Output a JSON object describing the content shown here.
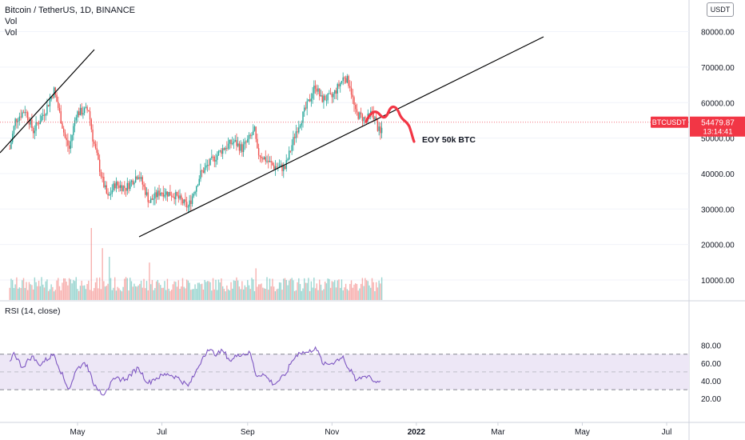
{
  "header": {
    "symbol_line": "Bitcoin / TetherUS, 1D, BINANCE",
    "vol1": "Vol",
    "vol2": "Vol",
    "currency": "USDT"
  },
  "rsi_label": "RSI (14, close)",
  "annotation": "EOY 50k BTC",
  "last_price": {
    "symbol": "BTCUSDT",
    "price": "54479.87",
    "countdown": "13:14:41",
    "value": 54479.87
  },
  "colors": {
    "up": "#26a69a",
    "down": "#ef5350",
    "rsi_line": "#7e57c2",
    "rsi_band": "#ede7f6",
    "drawing": "#000000",
    "annotation_line": "#f23645",
    "axis_text": "#131722",
    "grid": "#f0f3fa"
  },
  "chart_data": [
    {
      "type": "candlestick",
      "title": "Bitcoin / TetherUS, 1D, BINANCE",
      "y_ticks": [
        "10000.00",
        "20000.00",
        "30000.00",
        "40000.00",
        "50000.00",
        "60000.00",
        "70000.00",
        "80000.00"
      ],
      "ylim": [
        0,
        84000
      ],
      "x_ticks": [
        "May",
        "Jul",
        "Sep",
        "Nov",
        "2022",
        "Mar",
        "May",
        "Jul"
      ],
      "price_path": [
        [
          "2021-03-13",
          47000
        ],
        [
          "2021-03-17",
          55000
        ],
        [
          "2021-03-24",
          58000
        ],
        [
          "2021-03-30",
          52000
        ],
        [
          "2021-04-08",
          58000
        ],
        [
          "2021-04-14",
          63500
        ],
        [
          "2021-04-18",
          57000
        ],
        [
          "2021-04-22",
          50000
        ],
        [
          "2021-04-25",
          47000
        ],
        [
          "2021-04-30",
          57000
        ],
        [
          "2021-05-09",
          58000
        ],
        [
          "2021-05-12",
          50000
        ],
        [
          "2021-05-19",
          38000
        ],
        [
          "2021-05-23",
          33000
        ],
        [
          "2021-05-28",
          37000
        ],
        [
          "2021-06-05",
          36000
        ],
        [
          "2021-06-14",
          40000
        ],
        [
          "2021-06-22",
          32000
        ],
        [
          "2021-06-30",
          35000
        ],
        [
          "2021-07-10",
          34000
        ],
        [
          "2021-07-20",
          30500
        ],
        [
          "2021-07-29",
          40000
        ],
        [
          "2021-08-07",
          44000
        ],
        [
          "2021-08-14",
          47000
        ],
        [
          "2021-08-22",
          49000
        ],
        [
          "2021-08-28",
          47000
        ],
        [
          "2021-09-06",
          52000
        ],
        [
          "2021-09-08",
          46000
        ],
        [
          "2021-09-20",
          42000
        ],
        [
          "2021-09-28",
          41500
        ],
        [
          "2021-10-06",
          52000
        ],
        [
          "2021-10-15",
          60000
        ],
        [
          "2021-10-20",
          65000
        ],
        [
          "2021-10-24",
          61000
        ],
        [
          "2021-11-01",
          61500
        ],
        [
          "2021-11-10",
          67500
        ],
        [
          "2021-11-14",
          65000
        ],
        [
          "2021-11-18",
          57000
        ],
        [
          "2021-11-26",
          55000
        ],
        [
          "2021-11-30",
          57500
        ],
        [
          "2021-12-04",
          53000
        ],
        [
          "2021-12-06",
          51000
        ],
        [
          "2021-12-08",
          54500
        ]
      ],
      "volume_spikes": [
        [
          "2021-05-11",
          25000
        ],
        [
          "2021-05-19",
          18000
        ],
        [
          "2021-05-24",
          15000
        ],
        [
          "2021-06-22",
          13000
        ],
        [
          "2021-09-07",
          11000
        ]
      ],
      "last_price": 54479.87
    },
    {
      "type": "line",
      "title": "RSI (14, close)",
      "y_ticks": [
        "20.00",
        "40.00",
        "60.00",
        "80.00"
      ],
      "ylim": [
        20,
        82
      ],
      "bands": [
        30,
        50,
        70
      ],
      "points": [
        [
          "2021-03-13",
          62
        ],
        [
          "2021-03-16",
          72
        ],
        [
          "2021-03-22",
          55
        ],
        [
          "2021-03-29",
          68
        ],
        [
          "2021-04-03",
          58
        ],
        [
          "2021-04-14",
          70
        ],
        [
          "2021-04-23",
          35
        ],
        [
          "2021-04-25",
          31
        ],
        [
          "2021-04-30",
          52
        ],
        [
          "2021-05-05",
          60
        ],
        [
          "2021-05-08",
          58
        ],
        [
          "2021-05-12",
          38
        ],
        [
          "2021-05-17",
          30
        ],
        [
          "2021-05-19",
          24
        ],
        [
          "2021-05-22",
          30
        ],
        [
          "2021-05-28",
          42
        ],
        [
          "2021-06-05",
          42
        ],
        [
          "2021-06-14",
          55
        ],
        [
          "2021-06-21",
          37
        ],
        [
          "2021-06-25",
          42
        ],
        [
          "2021-07-05",
          48
        ],
        [
          "2021-07-12",
          44
        ],
        [
          "2021-07-20",
          34
        ],
        [
          "2021-07-25",
          48
        ],
        [
          "2021-07-31",
          68
        ],
        [
          "2021-08-03",
          75
        ],
        [
          "2021-08-10",
          70
        ],
        [
          "2021-08-14",
          74
        ],
        [
          "2021-08-20",
          62
        ],
        [
          "2021-08-25",
          70
        ],
        [
          "2021-09-03",
          71
        ],
        [
          "2021-09-07",
          46
        ],
        [
          "2021-09-12",
          48
        ],
        [
          "2021-09-20",
          36
        ],
        [
          "2021-09-28",
          46
        ],
        [
          "2021-10-03",
          62
        ],
        [
          "2021-10-08",
          72
        ],
        [
          "2021-10-15",
          72
        ],
        [
          "2021-10-20",
          78
        ],
        [
          "2021-10-26",
          58
        ],
        [
          "2021-11-01",
          60
        ],
        [
          "2021-11-09",
          68
        ],
        [
          "2021-11-12",
          55
        ],
        [
          "2021-11-16",
          48
        ],
        [
          "2021-11-18",
          40
        ],
        [
          "2021-11-24",
          45
        ],
        [
          "2021-11-28",
          46
        ],
        [
          "2021-12-01",
          39
        ],
        [
          "2021-12-06",
          40
        ]
      ]
    }
  ]
}
